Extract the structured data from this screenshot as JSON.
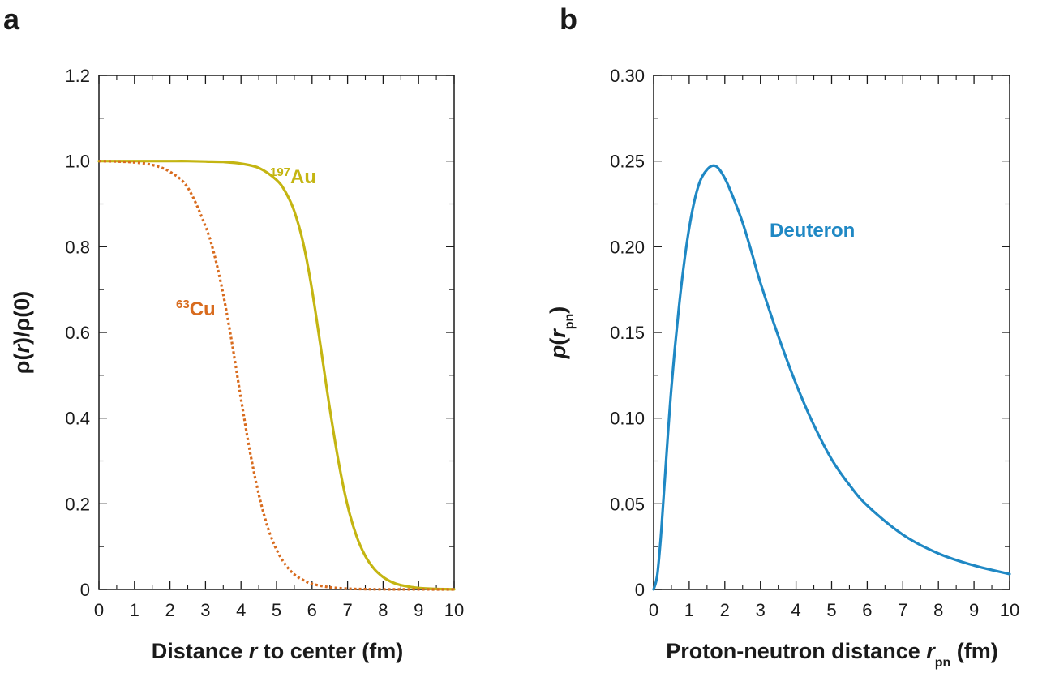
{
  "chart_data": [
    {
      "panel": "a",
      "type": "line",
      "xlabel_before": "Distance ",
      "xlabel_var": "r",
      "xlabel_after": " to center (fm)",
      "ylabel_pre": "ρ(",
      "ylabel_var": "r",
      "ylabel_post": ")/ρ(0)",
      "xlim": [
        0,
        10
      ],
      "ylim": [
        0,
        1.2
      ],
      "xticks": [
        0,
        1,
        2,
        3,
        4,
        5,
        6,
        7,
        8,
        9,
        10
      ],
      "xtick_labels": [
        "0",
        "1",
        "2",
        "3",
        "4",
        "5",
        "6",
        "7",
        "8",
        "9",
        "10"
      ],
      "yticks": [
        0,
        0.2,
        0.4,
        0.6,
        0.8,
        1.0,
        1.2
      ],
      "ytick_labels": [
        "0",
        "0.2",
        "0.4",
        "0.6",
        "0.8",
        "1.0",
        "1.2"
      ],
      "grid": false,
      "series": [
        {
          "label_sup": "197",
          "label_main": "Au",
          "color": "#c4b512",
          "style": "solid",
          "x": [
            0,
            0.5,
            1,
            1.5,
            2,
            2.5,
            3,
            3.5,
            4,
            4.5,
            5,
            5.25,
            5.5,
            5.75,
            6,
            6.25,
            6.5,
            6.75,
            7,
            7.25,
            7.5,
            7.75,
            8,
            8.25,
            8.5,
            9,
            9.5,
            10
          ],
          "y": [
            1.0,
            1.0,
            1.0,
            1.0,
            1.0,
            1.0,
            0.999,
            0.998,
            0.994,
            0.984,
            0.956,
            0.928,
            0.883,
            0.809,
            0.699,
            0.562,
            0.422,
            0.296,
            0.196,
            0.125,
            0.078,
            0.048,
            0.029,
            0.017,
            0.01,
            0.0035,
            0.0011,
            0.0004
          ]
        },
        {
          "label_sup": "63",
          "label_main": "Cu",
          "color": "#d86b1e",
          "style": "dotted",
          "x": [
            0,
            0.5,
            1,
            1.5,
            2,
            2.5,
            3,
            3.25,
            3.5,
            3.75,
            4,
            4.25,
            4.5,
            4.75,
            5,
            5.25,
            5.5,
            5.75,
            6,
            6.5,
            7,
            7.5,
            8,
            9,
            10
          ],
          "y": [
            1.0,
            0.999,
            0.997,
            0.991,
            0.975,
            0.938,
            0.848,
            0.781,
            0.689,
            0.573,
            0.445,
            0.323,
            0.222,
            0.146,
            0.093,
            0.058,
            0.035,
            0.022,
            0.013,
            0.005,
            0.0018,
            0.0007,
            0.0003,
            0.0001,
            0.0
          ]
        }
      ]
    },
    {
      "panel": "b",
      "type": "line",
      "xlabel_before": "Proton-neutron distance ",
      "xlabel_var": "r",
      "xlabel_sub": "pn",
      "xlabel_after": " (fm)",
      "ylabel_var": "p",
      "ylabel_open": "(",
      "ylabel_var2": "r",
      "ylabel_sub": "pn",
      "ylabel_close": ")",
      "xlim": [
        0,
        10
      ],
      "ylim": [
        0,
        0.3
      ],
      "xticks": [
        0,
        1,
        2,
        3,
        4,
        5,
        6,
        7,
        8,
        9,
        10
      ],
      "xtick_labels": [
        "0",
        "1",
        "2",
        "3",
        "4",
        "5",
        "6",
        "7",
        "8",
        "9",
        "10"
      ],
      "yticks": [
        0,
        0.05,
        0.1,
        0.15,
        0.2,
        0.25,
        0.3
      ],
      "ytick_labels": [
        "0",
        "0.05",
        "0.10",
        "0.15",
        "0.20",
        "0.25",
        "0.30"
      ],
      "grid": false,
      "series": [
        {
          "label_main": "Deuteron",
          "color": "#1f88c4",
          "style": "solid",
          "x": [
            0,
            0.1,
            0.2,
            0.3,
            0.5,
            0.75,
            1.0,
            1.25,
            1.5,
            1.75,
            2.0,
            2.25,
            2.5,
            2.75,
            3.0,
            3.5,
            4.0,
            4.5,
            5.0,
            5.5,
            6.0,
            7.0,
            8.0,
            9.0,
            10.0
          ],
          "y": [
            0,
            0.008,
            0.03,
            0.06,
            0.118,
            0.172,
            0.211,
            0.235,
            0.245,
            0.247,
            0.24,
            0.228,
            0.214,
            0.197,
            0.179,
            0.148,
            0.12,
            0.096,
            0.076,
            0.061,
            0.049,
            0.032,
            0.021,
            0.014,
            0.009
          ]
        }
      ]
    }
  ]
}
